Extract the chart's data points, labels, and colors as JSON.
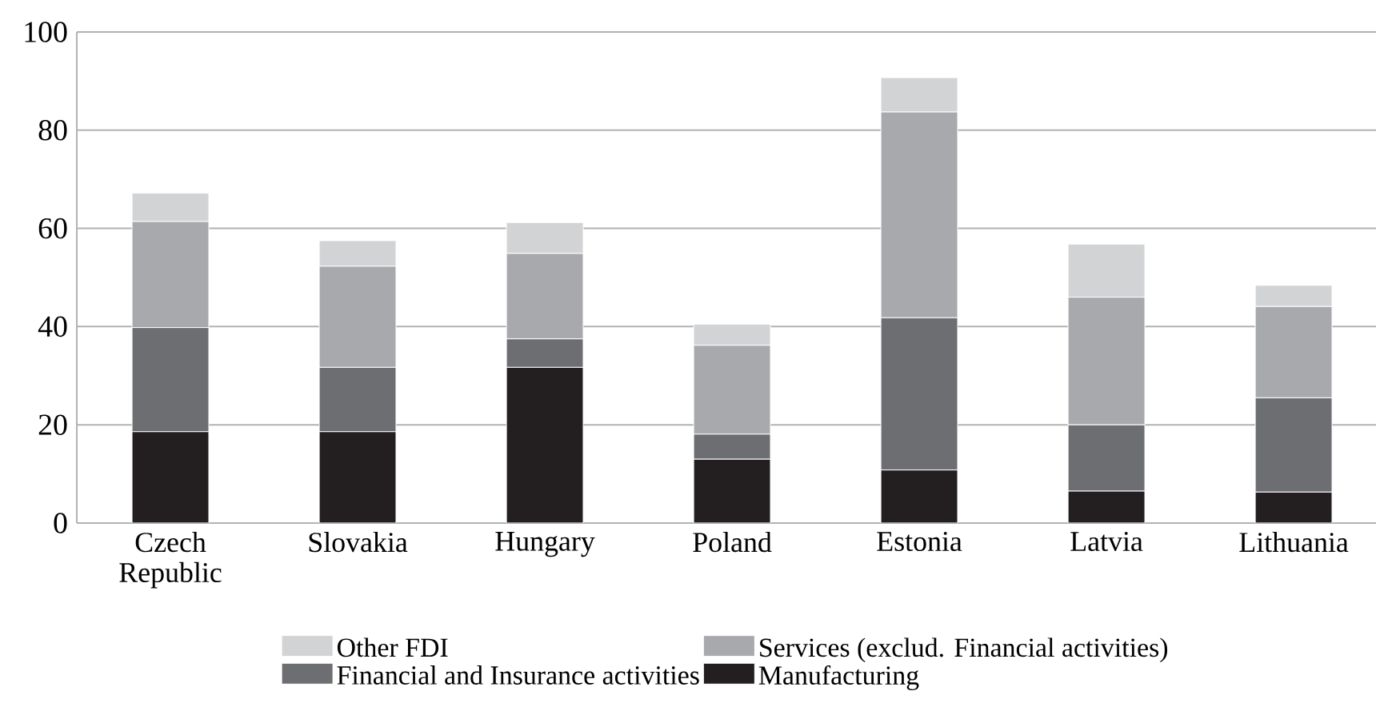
{
  "chart_data": {
    "type": "bar",
    "stacked": true,
    "categories": [
      "Czech Republic",
      "Slovakia",
      "Hungary",
      "Poland",
      "Estonia",
      "Latvia",
      "Lithuania"
    ],
    "series": [
      {
        "name": "Manufacturing",
        "color": "#231f20",
        "values": [
          18.6,
          18.6,
          31.7,
          13.0,
          10.8,
          6.5,
          6.3
        ]
      },
      {
        "name": "Financial and Insurance activities",
        "color": "#6d6e71",
        "values": [
          21.2,
          13.1,
          5.8,
          5.1,
          31.0,
          13.5,
          19.2
        ]
      },
      {
        "name": "Services (exclud. Financial activities)",
        "color": "#a7a9ac",
        "values": [
          21.6,
          20.6,
          17.4,
          18.1,
          41.9,
          26.0,
          18.6
        ]
      },
      {
        "name": "Other FDI",
        "color": "#d1d3d4",
        "values": [
          5.8,
          5.2,
          6.3,
          4.3,
          7.0,
          10.8,
          4.3
        ]
      }
    ],
    "ylim": [
      0,
      100
    ],
    "yticks": [
      0,
      20,
      40,
      60,
      80,
      100
    ],
    "grid": "y",
    "legend": "bottom"
  }
}
